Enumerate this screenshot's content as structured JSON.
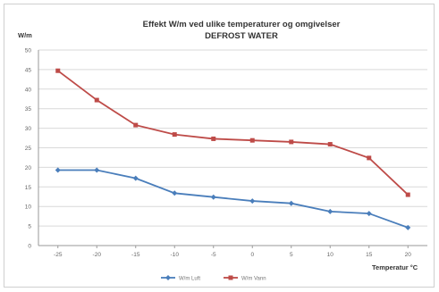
{
  "chart_data": {
    "type": "line",
    "title": "Effekt W/m ved ulike temperaturer og omgivelser",
    "subtitle": "DEFROST WATER",
    "ylabel": "W/m",
    "xlabel": "Temperatur °C",
    "categories": [
      "-25",
      "-20",
      "-15",
      "-10",
      "-5",
      "0",
      "5",
      "10",
      "15",
      "20"
    ],
    "ylim": [
      0,
      50
    ],
    "y_ticks": [
      "0",
      "5",
      "10",
      "15",
      "20",
      "25",
      "30",
      "35",
      "40",
      "45",
      "50"
    ],
    "grid": true,
    "legend_position": "bottom",
    "series": [
      {
        "name": "W/m Luft",
        "color": "#4a7ebb",
        "marker": "diamond",
        "values": [
          19.3,
          19.3,
          17.2,
          13.4,
          12.4,
          11.4,
          10.8,
          8.7,
          8.2,
          4.6
        ]
      },
      {
        "name": "W/m Vann",
        "color": "#be4b48",
        "marker": "square",
        "values": [
          44.7,
          37.2,
          30.8,
          28.4,
          27.3,
          26.9,
          26.5,
          25.9,
          22.4,
          13.0
        ]
      }
    ]
  }
}
